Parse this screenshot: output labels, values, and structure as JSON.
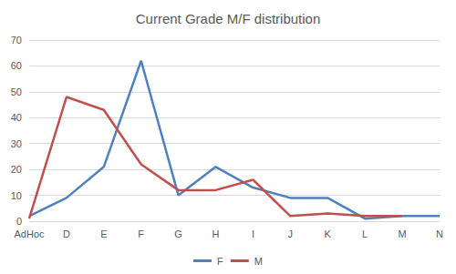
{
  "chart_data": {
    "type": "line",
    "title": "Current Grade M/F distribution",
    "categories": [
      "AdHoc",
      "D",
      "E",
      "F",
      "G",
      "H",
      "I",
      "J",
      "K",
      "L",
      "M",
      "N"
    ],
    "series": [
      {
        "name": "F",
        "color": "#4f81bd",
        "values": [
          2,
          9,
          21,
          62,
          10,
          21,
          13,
          9,
          9,
          1,
          2,
          2
        ]
      },
      {
        "name": "M",
        "color": "#c0504d",
        "values": [
          1,
          48,
          43,
          22,
          12,
          12,
          16,
          2,
          3,
          2,
          2,
          null
        ]
      }
    ],
    "ylim": [
      0,
      70
    ],
    "yticks": [
      0,
      10,
      20,
      30,
      40,
      50,
      60,
      70
    ],
    "grid": true,
    "legend": "bottom",
    "marker": "none"
  }
}
